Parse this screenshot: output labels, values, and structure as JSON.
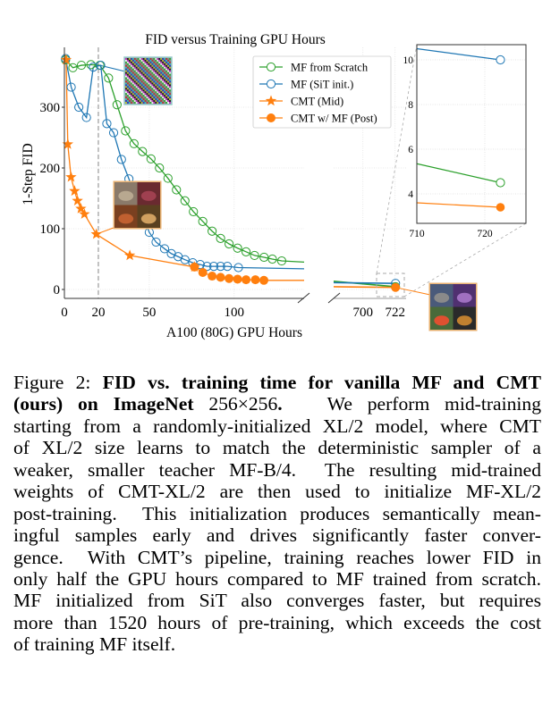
{
  "chart_data": {
    "type": "line",
    "title": "FID versus Training GPU Hours",
    "xlabel": "A100 (80G) GPU Hours",
    "ylabel": "1-Step FID",
    "x_axis_broken": true,
    "xlim_left": [
      -1,
      141
    ],
    "xlim_right": [
      681,
      730
    ],
    "ylim": [
      -16,
      398
    ],
    "xticks_left": [
      0,
      20,
      50,
      100
    ],
    "xticks_right": [
      700,
      722
    ],
    "yticks": [
      0,
      100,
      200,
      300
    ],
    "grid": true,
    "legend": "top-right",
    "vline_dashed_x": 20,
    "series": [
      {
        "name": "MF from Scratch",
        "color": "#2ca02c",
        "marker": "open-circle",
        "x": [
          0.7,
          5,
          10,
          15.6,
          20.9,
          26,
          31,
          36,
          41,
          46,
          51,
          56,
          61,
          66,
          71,
          76,
          81.5,
          87,
          92,
          97,
          102,
          107,
          112,
          117.6,
          122.5,
          128,
          722.3
        ],
        "y": [
          378,
          365,
          369,
          370,
          369,
          348,
          304,
          261,
          240,
          227,
          215,
          200,
          183,
          164,
          146,
          128,
          112,
          96,
          84,
          75,
          68,
          62,
          56,
          53,
          50,
          47,
          4.5
        ]
      },
      {
        "name": "MF (SiT init.)",
        "color": "#1f77b4",
        "marker": "open-circle",
        "x": [
          0.7,
          4,
          8.5,
          13,
          17,
          21.4,
          25,
          29,
          33.6,
          38,
          42,
          46,
          50,
          54,
          59,
          63,
          67,
          71,
          75.6,
          80,
          84,
          88,
          92,
          96,
          102.5,
          722.3
        ],
        "y": [
          380,
          333,
          300,
          283,
          366,
          369,
          273,
          258,
          214,
          182,
          153,
          123,
          94,
          78,
          67,
          59,
          54,
          49,
          44,
          41,
          38,
          38,
          38,
          38,
          36,
          10.0
        ]
      },
      {
        "name": "CMT (Mid)",
        "color": "#ff7f0e",
        "marker": "star",
        "x": [
          1,
          2,
          3.9,
          6,
          7.7,
          9.7,
          11.8,
          18.8,
          38.5,
          76.6
        ],
        "y": [
          378,
          239,
          185,
          162,
          146,
          133,
          124,
          91,
          56,
          37
        ]
      },
      {
        "name": "CMT w/ MF (Post)",
        "color": "#ff7f0e",
        "marker": "filled-circle",
        "x": [
          76.6,
          81.5,
          87,
          92,
          97,
          102,
          107,
          112.5,
          117.5,
          722.3
        ],
        "y": [
          37,
          28,
          22,
          20,
          18,
          17,
          16,
          16,
          15,
          3.4
        ]
      }
    ],
    "inset": {
      "xlim": [
        710,
        726
      ],
      "ylim": [
        2.7,
        10.7
      ],
      "xticks": [
        710,
        720
      ],
      "yticks": [
        4,
        6,
        8,
        10
      ],
      "entry_values_at_710": {
        "MF from Scratch": 5.35,
        "MF (SiT init.)": 10.5,
        "CMT w/ MF (Post)": 3.6
      }
    },
    "sample_images": [
      "noise-sample-at-20h",
      "cmt-mid-samples-at-20h",
      "final-samples-at-722h"
    ]
  },
  "caption": {
    "lines": [
      [
        {
          "t": "Figure 2: ",
          "b": false
        },
        {
          "t": "FID vs. training time for vanilla MF and CMT",
          "b": true
        }
      ],
      [
        {
          "t": "(ours) on ImageNet ",
          "b": true
        },
        {
          "t": "256×256",
          "b": false
        },
        {
          "t": ".",
          "b": true
        },
        {
          "t": "   We perform mid-training",
          "b": false
        }
      ],
      [
        {
          "t": "starting from a randomly-initialized XL/2 model, where CMT",
          "b": false
        }
      ],
      [
        {
          "t": "of XL/2 size learns to match the deterministic sampler of a",
          "b": false
        }
      ],
      [
        {
          "t": "weaker, smaller teacher MF-B/4.  The resulting mid-trained",
          "b": false
        }
      ],
      [
        {
          "t": "weights of CMT-XL/2 are then used to initialize MF-XL/2",
          "b": false
        }
      ],
      [
        {
          "t": "post-training.  This initialization produces semantically mean-",
          "b": false
        }
      ],
      [
        {
          "t": "ingful samples early and drives significantly faster conver-",
          "b": false
        }
      ],
      [
        {
          "t": "gence.  With CMT’s pipeline, training reaches lower FID in",
          "b": false
        }
      ],
      [
        {
          "t": "only half the GPU hours compared to MF trained from scratch.",
          "b": false
        }
      ],
      [
        {
          "t": "MF initialized from SiT also converges faster, but requires",
          "b": false
        }
      ],
      [
        {
          "t": "more than 1520 hours of pre-training, which exceeds the cost",
          "b": false
        }
      ],
      [
        {
          "t": "of training MF itself.",
          "b": false
        }
      ]
    ]
  }
}
